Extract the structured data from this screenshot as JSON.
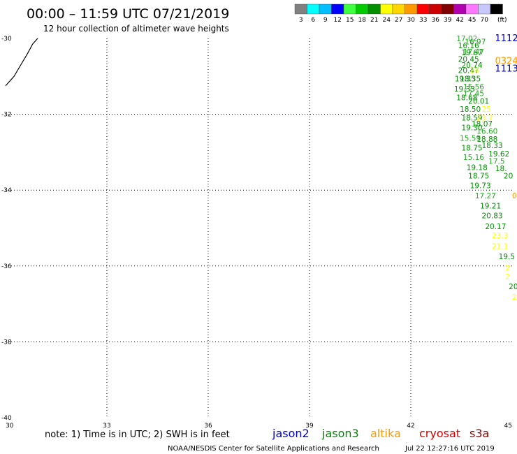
{
  "header": {
    "title": "00:00 – 11:59 UTC 07/21/2019",
    "subtitle": "12 hour collection of altimeter wave heights"
  },
  "legend": {
    "swatches": [
      {
        "color": "#808080",
        "label": "3"
      },
      {
        "color": "#00ffff",
        "label": "6"
      },
      {
        "color": "#00bfff",
        "label": "9"
      },
      {
        "color": "#0000ff",
        "label": "12"
      },
      {
        "color": "#40ff40",
        "label": "15"
      },
      {
        "color": "#00cc00",
        "label": "18"
      },
      {
        "color": "#009000",
        "label": "21"
      },
      {
        "color": "#ffff00",
        "label": "24"
      },
      {
        "color": "#ffd700",
        "label": "27"
      },
      {
        "color": "#ff9900",
        "label": "30"
      },
      {
        "color": "#ff0000",
        "label": "33"
      },
      {
        "color": "#cc0000",
        "label": "36"
      },
      {
        "color": "#800000",
        "label": "39"
      },
      {
        "color": "#b000b0",
        "label": "42"
      },
      {
        "color": "#ff77ff",
        "label": "45"
      },
      {
        "color": "#c8c8ff",
        "label": "70"
      },
      {
        "color": "#000000",
        "label": ""
      }
    ],
    "unit": "(ft)"
  },
  "axes": {
    "lat_labels": [
      "-30",
      "-32",
      "-34",
      "-36",
      "-38",
      "-40"
    ],
    "lon_labels": [
      "30",
      "33",
      "36",
      "39",
      "42",
      "45"
    ]
  },
  "footer": {
    "note": "note: 1) Time is in UTC; 2) SWH is in feet",
    "satellites": [
      {
        "name": "jason2",
        "color": "#0000cc"
      },
      {
        "name": "jason3",
        "color": "#008800"
      },
      {
        "name": "altika",
        "color": "#ff9900"
      },
      {
        "name": "cryosat",
        "color": "#dd0000"
      },
      {
        "name": "s3a",
        "color": "#880000"
      }
    ],
    "credit": "NOAA/NESDIS Center for Satellite Applications and Research",
    "timestamp": "Jul 22 12:27:16 UTC 2019"
  },
  "chart_data": {
    "type": "scatter",
    "x_range": [
      30,
      45
    ],
    "y_range": [
      -40,
      -30
    ],
    "x_ticks": [
      30,
      33,
      36,
      39,
      42,
      45
    ],
    "y_ticks": [
      -30,
      -32,
      -34,
      -36,
      -38,
      -40
    ],
    "grid": true,
    "coastline": [
      [
        30.0,
        -31.25
      ],
      [
        30.25,
        -31.0
      ],
      [
        30.45,
        -30.7
      ],
      [
        30.65,
        -30.4
      ],
      [
        30.8,
        -30.15
      ],
      [
        30.95,
        -30.0
      ]
    ],
    "time_labels": [
      {
        "text": "1112",
        "color": "#0000cc",
        "lon": 44.7,
        "lat": -30.0
      },
      {
        "text": "0324",
        "color": "#ff9900",
        "lon": 44.7,
        "lat": -30.6
      },
      {
        "text": "1113",
        "color": "#0000cc",
        "lon": 44.7,
        "lat": -30.8
      }
    ],
    "points": [
      {
        "v": "17.02",
        "color": "#22aa22",
        "lon": 43.35,
        "lat": -30.0
      },
      {
        "v": "16.97",
        "color": "#22aa22",
        "lon": 43.6,
        "lat": -30.08
      },
      {
        "v": "16.16",
        "color": "#009000",
        "lon": 43.4,
        "lat": -30.18
      },
      {
        "v": "17.47",
        "color": "#22aa22",
        "lon": 43.55,
        "lat": -30.35
      },
      {
        "v": "19.67",
        "color": "#009000",
        "lon": 43.5,
        "lat": -30.37
      },
      {
        "v": "20.45",
        "color": "#009000",
        "lon": 43.4,
        "lat": -30.54
      },
      {
        "v": "20.74",
        "color": "#009000",
        "lon": 43.5,
        "lat": -30.7
      },
      {
        "v": "20.47",
        "color": "#009000",
        "lon": 43.4,
        "lat": -30.84
      },
      {
        "v": "24",
        "color": "#ffff00",
        "lon": 43.75,
        "lat": -30.84
      },
      {
        "v": "19.35",
        "color": "#009000",
        "lon": 43.3,
        "lat": -31.06
      },
      {
        "v": "18.35",
        "color": "#009000",
        "lon": 43.45,
        "lat": -31.06
      },
      {
        "v": "15.56",
        "color": "#22aa22",
        "lon": 43.55,
        "lat": -31.27
      },
      {
        "v": "19.33",
        "color": "#009000",
        "lon": 43.28,
        "lat": -31.33
      },
      {
        "v": "17.45",
        "color": "#22aa22",
        "lon": 43.55,
        "lat": -31.45
      },
      {
        "v": "18.68",
        "color": "#009000",
        "lon": 43.35,
        "lat": -31.56
      },
      {
        "v": "20.01",
        "color": "#009000",
        "lon": 43.7,
        "lat": -31.65
      },
      {
        "v": "18.50",
        "color": "#009000",
        "lon": 43.45,
        "lat": -31.86
      },
      {
        "v": "25",
        "color": "#ffff00",
        "lon": 44.1,
        "lat": -31.86
      },
      {
        "v": "18.59",
        "color": "#009000",
        "lon": 43.5,
        "lat": -32.09
      },
      {
        "v": "23.7",
        "color": "#ffff00",
        "lon": 43.95,
        "lat": -32.09
      },
      {
        "v": "18.07",
        "color": "#009000",
        "lon": 43.8,
        "lat": -32.25
      },
      {
        "v": "19.30",
        "color": "#009000",
        "lon": 43.5,
        "lat": -32.35
      },
      {
        "v": "16.60",
        "color": "#22aa22",
        "lon": 43.95,
        "lat": -32.44
      },
      {
        "v": "15.59",
        "color": "#22aa22",
        "lon": 43.45,
        "lat": -32.62
      },
      {
        "v": "18.88",
        "color": "#009000",
        "lon": 43.95,
        "lat": -32.65
      },
      {
        "v": "18.75",
        "color": "#009000",
        "lon": 43.5,
        "lat": -32.88
      },
      {
        "v": "18.33",
        "color": "#009000",
        "lon": 44.1,
        "lat": -32.82
      },
      {
        "v": "19.62",
        "color": "#009000",
        "lon": 44.3,
        "lat": -33.04
      },
      {
        "v": "15.16",
        "color": "#22aa22",
        "lon": 43.55,
        "lat": -33.13
      },
      {
        "v": "17.5",
        "color": "#22aa22",
        "lon": 44.3,
        "lat": -33.23
      },
      {
        "v": "19.18",
        "color": "#009000",
        "lon": 43.65,
        "lat": -33.4
      },
      {
        "v": "18.",
        "color": "#009000",
        "lon": 44.5,
        "lat": -33.43
      },
      {
        "v": "18.75",
        "color": "#009000",
        "lon": 43.7,
        "lat": -33.62
      },
      {
        "v": "20",
        "color": "#009000",
        "lon": 44.75,
        "lat": -33.62
      },
      {
        "v": "19.73",
        "color": "#009000",
        "lon": 43.75,
        "lat": -33.88
      },
      {
        "v": "17.27",
        "color": "#22aa22",
        "lon": 43.9,
        "lat": -34.14
      },
      {
        "v": "0",
        "color": "#ff9900",
        "lon": 45.0,
        "lat": -34.14
      },
      {
        "v": "19.21",
        "color": "#009000",
        "lon": 44.05,
        "lat": -34.41
      },
      {
        "v": "20.83",
        "color": "#009000",
        "lon": 44.1,
        "lat": -34.67
      },
      {
        "v": "20.17",
        "color": "#009000",
        "lon": 44.2,
        "lat": -34.95
      },
      {
        "v": "23.3",
        "color": "#ffff00",
        "lon": 44.4,
        "lat": -35.19
      },
      {
        "v": "21.1",
        "color": "#ffff00",
        "lon": 44.4,
        "lat": -35.48
      },
      {
        "v": "19.5",
        "color": "#009000",
        "lon": 44.6,
        "lat": -35.75
      },
      {
        "v": "2",
        "color": "#ffff00",
        "lon": 44.8,
        "lat": -36.05
      },
      {
        "v": "2",
        "color": "#ffff00",
        "lon": 44.8,
        "lat": -36.28
      },
      {
        "v": "20",
        "color": "#009000",
        "lon": 44.9,
        "lat": -36.54
      },
      {
        "v": "2",
        "color": "#ffff00",
        "lon": 45.0,
        "lat": -36.81
      }
    ]
  }
}
